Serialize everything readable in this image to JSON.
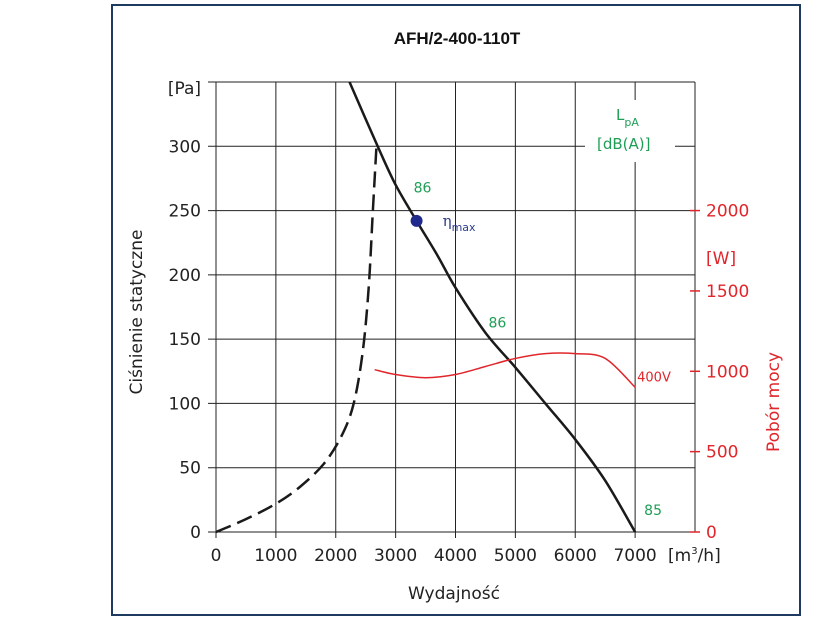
{
  "chart_data": {
    "type": "line",
    "title": "AFH/2-400-110T",
    "xlabel": "Wydajność",
    "xunit_pre": "[m",
    "xunit_sup": "3",
    "xunit_post": "/h]",
    "ylabel": "Ciśnienie statyczne",
    "yunit": "[Pa]",
    "y2label": "Pobór mocy",
    "y2unit": "[W]",
    "xlim": [
      0,
      8000
    ],
    "ylim": [
      0,
      350
    ],
    "y2lim": [
      0,
      2800
    ],
    "xticks": [
      0,
      1000,
      2000,
      3000,
      4000,
      5000,
      6000,
      7000
    ],
    "yticks": [
      0,
      50,
      100,
      150,
      200,
      250,
      300
    ],
    "y2ticks": [
      0,
      500,
      1000,
      1500,
      2000
    ],
    "grid": true,
    "series": [
      {
        "name": "",
        "axis": "left",
        "color": "#1a1a1a",
        "style": "solid",
        "x": [
          2230,
          2700,
          3000,
          3350,
          3700,
          4000,
          4500,
          5000,
          5500,
          6000,
          6500,
          7000
        ],
        "y": [
          350,
          300,
          270,
          242,
          215,
          190,
          155,
          128,
          100,
          72,
          40,
          0
        ]
      },
      {
        "name": "",
        "axis": "left",
        "color": "#1a1a1a",
        "style": "dashed",
        "x": [
          0,
          500,
          1000,
          1400,
          1800,
          2100,
          2300,
          2450,
          2550,
          2620,
          2680
        ],
        "y": [
          0,
          10,
          22,
          35,
          53,
          75,
          100,
          140,
          190,
          250,
          300
        ]
      },
      {
        "name": "400V",
        "axis": "right",
        "color": "#e0262b",
        "style": "solid",
        "x": [
          2650,
          3000,
          3500,
          4000,
          4500,
          5000,
          5500,
          6000,
          6500,
          7000
        ],
        "y": [
          1010,
          980,
          960,
          980,
          1030,
          1080,
          1110,
          1110,
          1080,
          900
        ]
      }
    ],
    "annotations": {
      "eta_symbol": "η",
      "eta_sub": "max",
      "eta_point": {
        "x": 3350,
        "y": 242
      },
      "sound_label_main": "L",
      "sound_label_sub": "pA",
      "sound_unit": "[dB(A)]",
      "sound_values": [
        {
          "text": "86",
          "x": 3450,
          "y": 268
        },
        {
          "text": "86",
          "x": 4700,
          "y": 163
        },
        {
          "text": "85",
          "x": 7300,
          "y": 17
        }
      ],
      "voltage_label": "400V"
    },
    "colors": {
      "frame": "#1f3a5f",
      "power": "#e0262b",
      "sound": "#1e9e55",
      "eta_point": "#1f2a8c"
    }
  }
}
